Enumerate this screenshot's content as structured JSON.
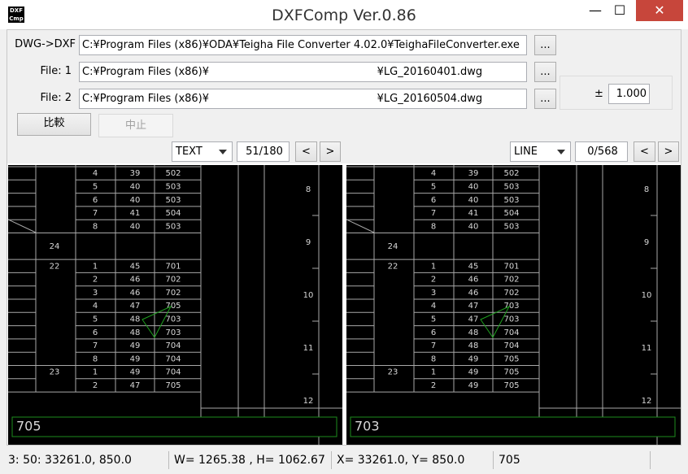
{
  "window": {
    "title": "DXFComp Ver.0.86"
  },
  "form": {
    "dwg_dxf_label": "DWG->DXF",
    "dwg_dxf_path": "C:¥Program Files (x86)¥ODA¥Teigha File Converter 4.02.0¥TeighaFileConverter.exe",
    "file1_label": "File: 1",
    "file1_path": "C:¥Program Files (x86)¥                                                  ¥LG_20160401.dwg",
    "file2_label": "File: 2",
    "file2_path": "C:¥Program Files (x86)¥                                                  ¥LG_20160504.dwg",
    "browse_button": "...",
    "tolerance_sign": "±",
    "tolerance_value": "1.000",
    "compare_button": "比較",
    "stop_button": "中止"
  },
  "cad": {
    "left": {
      "entity_type": "TEXT",
      "counter": "51/180",
      "prev": "<",
      "next": ">",
      "ruler": [
        "8",
        "9",
        "10",
        "11",
        "12"
      ],
      "groups": [
        {
          "rows": [
            {
              "cells": [
                "4",
                "39",
                "502"
              ]
            },
            {
              "cells": [
                "5",
                "40",
                "503"
              ]
            },
            {
              "cells": [
                "6",
                "40",
                "503"
              ]
            },
            {
              "cells": [
                "7",
                "41",
                "504"
              ]
            },
            {
              "cells": [
                "8",
                "40",
                "503"
              ]
            }
          ]
        },
        {
          "label": "24",
          "rows": []
        },
        {
          "label": "22",
          "rows": [
            {
              "cells": [
                "1",
                "45",
                "701"
              ]
            },
            {
              "cells": [
                "2",
                "46",
                "702"
              ]
            },
            {
              "cells": [
                "3",
                "46",
                "702"
              ]
            },
            {
              "cells": [
                "4",
                "47",
                "705"
              ],
              "colors": [
                null,
                null,
                "#ff2a2a"
              ]
            },
            {
              "cells": [
                "5",
                "48",
                "703"
              ],
              "colors": [
                null,
                "#ff2a2a",
                null
              ]
            },
            {
              "cells": [
                "6",
                "48",
                "703"
              ],
              "colors": [
                null,
                null,
                "#ff2a2a"
              ]
            },
            {
              "cells": [
                "7",
                "49",
                "704"
              ],
              "colors": [
                null,
                "#ff2a2a",
                null
              ]
            },
            {
              "cells": [
                "8",
                "49",
                "704"
              ],
              "colors": [
                null,
                null,
                "#ff2a2a"
              ]
            }
          ]
        },
        {
          "label": "23",
          "rows": [
            {
              "cells": [
                "1",
                "49",
                "704"
              ],
              "colors": [
                null,
                null,
                "#ff2a2a"
              ]
            },
            {
              "cells": [
                "2",
                "47",
                "705"
              ],
              "colors": [
                null,
                "#ff2a2a",
                null
              ]
            }
          ]
        }
      ],
      "info": "705",
      "info_color": "#ff2a2a"
    },
    "right": {
      "entity_type": "LINE",
      "counter": "0/568",
      "prev": "<",
      "next": ">",
      "ruler": [
        "8",
        "9",
        "10",
        "11",
        "12"
      ],
      "groups": [
        {
          "rows": [
            {
              "cells": [
                "4",
                "39",
                "502"
              ]
            },
            {
              "cells": [
                "5",
                "40",
                "503"
              ]
            },
            {
              "cells": [
                "6",
                "40",
                "503"
              ]
            },
            {
              "cells": [
                "7",
                "41",
                "504"
              ]
            },
            {
              "cells": [
                "8",
                "40",
                "503"
              ]
            }
          ]
        },
        {
          "label": "24",
          "rows": []
        },
        {
          "label": "22",
          "rows": [
            {
              "cells": [
                "1",
                "45",
                "701"
              ]
            },
            {
              "cells": [
                "2",
                "46",
                "702"
              ]
            },
            {
              "cells": [
                "3",
                "46",
                "702"
              ]
            },
            {
              "cells": [
                "4",
                "47",
                "703"
              ],
              "colors": [
                null,
                null,
                "#ffff40"
              ]
            },
            {
              "cells": [
                "5",
                "47",
                "703"
              ],
              "colors": [
                null,
                "#ffff40",
                null
              ]
            },
            {
              "cells": [
                "6",
                "48",
                "704"
              ],
              "colors": [
                null,
                null,
                "#ffff40"
              ]
            },
            {
              "cells": [
                "7",
                "48",
                "704"
              ],
              "colors": [
                null,
                "#ffff40",
                null
              ]
            },
            {
              "cells": [
                "8",
                "49",
                "705"
              ],
              "colors": [
                null,
                null,
                "#ffff40"
              ]
            }
          ]
        },
        {
          "label": "23",
          "rows": [
            {
              "cells": [
                "1",
                "49",
                "705"
              ],
              "colors": [
                null,
                null,
                "#ffff40"
              ]
            },
            {
              "cells": [
                "2",
                "49",
                "705"
              ],
              "colors": [
                null,
                "#ffff40",
                null
              ]
            }
          ]
        }
      ],
      "info": "703",
      "info_color": "#ffff40"
    }
  },
  "status_bar": [
    "3: 50: 33261.0, 850.0",
    "W= 1265.38 , H= 1062.67",
    "X= 33261.0, Y= 850.0",
    "705"
  ]
}
